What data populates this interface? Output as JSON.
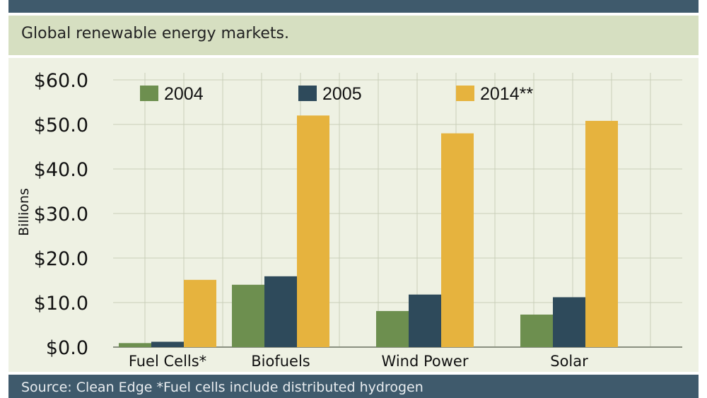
{
  "header": {
    "subtitle": "Global renewable energy markets.",
    "footer": "Source: Clean Edge *Fuel cells include distributed hydrogen"
  },
  "colors": {
    "series_2004": "#6d8f4f",
    "series_2005": "#2e4a5b",
    "series_2014": "#e6b33e",
    "grid": "#c9ceb9",
    "axis": "#8a8f80",
    "text": "#111111"
  },
  "chart_data": {
    "type": "bar",
    "ylabel": "Billions",
    "ylim": [
      0,
      60
    ],
    "yticks": [
      0,
      10,
      20,
      30,
      40,
      50,
      60
    ],
    "ytick_labels": [
      "$0.0",
      "$10.0",
      "$20.0",
      "$30.0",
      "$40.0",
      "$50.0",
      "$60.0"
    ],
    "categories": [
      "Fuel Cells*",
      "Biofuels",
      "Wind Power",
      "Solar"
    ],
    "series": [
      {
        "name": "2004",
        "values": [
          0.9,
          14.0,
          8.1,
          7.3
        ]
      },
      {
        "name": "2005",
        "values": [
          1.2,
          15.9,
          11.8,
          11.2
        ]
      },
      {
        "name": "2014**",
        "values": [
          15.1,
          52.0,
          48.0,
          50.8
        ]
      }
    ],
    "grid": true,
    "legend": "top"
  }
}
